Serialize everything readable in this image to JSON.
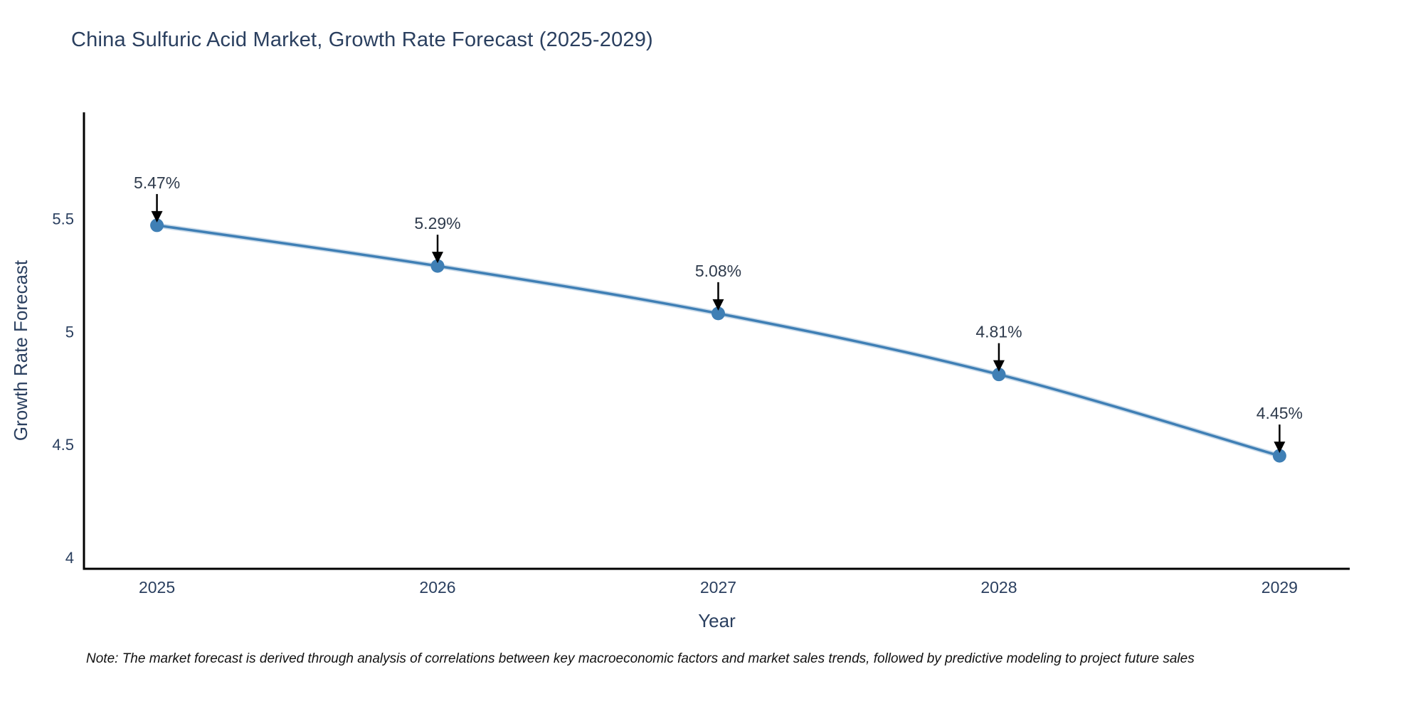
{
  "chart_data": {
    "type": "line",
    "title": "China Sulfuric Acid Market, Growth Rate Forecast (2025-2029)",
    "x": [
      2025,
      2026,
      2027,
      2028,
      2029
    ],
    "x_tick_labels": [
      "2025",
      "2026",
      "2027",
      "2028",
      "2029"
    ],
    "series": [
      {
        "name": "Growth Rate Forecast",
        "values": [
          5.47,
          5.29,
          5.08,
          4.81,
          4.45
        ]
      }
    ],
    "point_labels": [
      "5.47%",
      "5.29%",
      "5.08%",
      "4.81%",
      "4.45%"
    ],
    "xlabel": "Year",
    "ylabel": "Growth Rate Forecast",
    "yticks": [
      4,
      4.5,
      5,
      5.5
    ],
    "ytick_labels": [
      "4",
      "4.5",
      "5",
      "5.5"
    ],
    "ylim": [
      3.95,
      5.97
    ],
    "xlim": [
      2024.74,
      2029.25
    ],
    "grid": false,
    "legend": "none",
    "line_color": "#3f7fb5",
    "marker_color": "#3f7fb5",
    "axis_color": "#000000",
    "annotation_arrow_color": "#000000",
    "annotation_text_color": "#2f3b4c",
    "tick_label_color": "#2a3f5f",
    "axis_title_color": "#2a3f5f",
    "note": "Note: The market forecast is derived through analysis of correlations between key macroeconomic factors and market sales trends, followed by predictive modeling to project future sales"
  }
}
